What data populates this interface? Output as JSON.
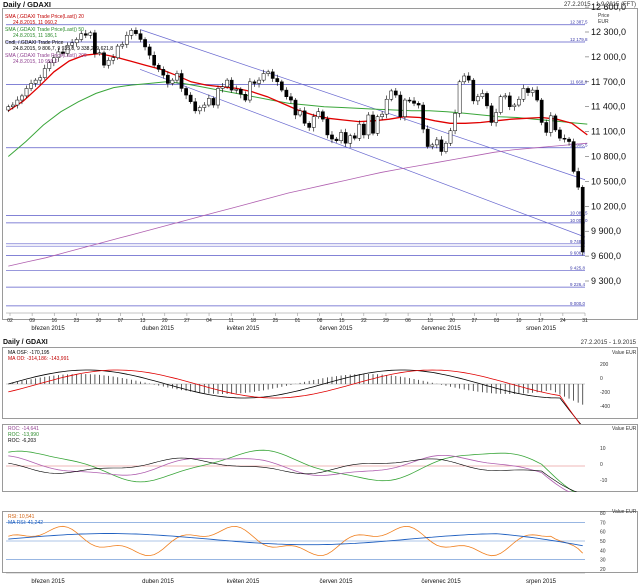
{
  "panel1": {
    "title": "Daily / GDAXI",
    "date_range": "27.2.2015 - 1.9.2015 (FFT)",
    "price_label": "Price",
    "currency": "EUR",
    "legend": [
      {
        "text": "SMA (.GDAXI Trade Price(Last)) 20",
        "value": "24.8.2015, 11 060,2",
        "color": "#e00000"
      },
      {
        "text": "SMA (.GDAXI Trade Price(Last)) 50",
        "value": "24.8.2015, 11 186,1",
        "color": "#3aa63a"
      },
      {
        "text": "Cndl, /.GDAXI Trade Price",
        "value": "24.8.2015, 9 806,7, 9 935,8, 9 338,2, 9 621,8",
        "color": "#000000"
      },
      {
        "text": "SMA (.GDAXI Trade Price(Last)) 200",
        "value": "24.8.2015, 10 959,6",
        "color": "#b060b0"
      }
    ],
    "y_ticks": [
      "12 600,0",
      "12 300,0",
      "12 000,0",
      "11 700,0",
      "11 400,0",
      "11 100,0",
      "10 800,0",
      "10 500,0",
      "10 200,0",
      "9 900,0",
      "9 600,0",
      "9 300,0"
    ],
    "level_labels": [
      "12 387,5",
      "12 179,8",
      "11 668,8",
      "10 905,5",
      "10 089,5",
      "10 000,0",
      "9 748,3",
      "9 606,8",
      "9 425,8",
      "9 226,4",
      "9 000,0"
    ],
    "x_day_labels": [
      "02",
      "09",
      "16",
      "23",
      "30",
      "07",
      "13",
      "20",
      "27",
      "04",
      "11",
      "18",
      "25",
      "01",
      "08",
      "15",
      "22",
      "29",
      "06",
      "13",
      "20",
      "27",
      "03",
      "10",
      "17",
      "24",
      "31"
    ],
    "x_month_labels": [
      "březen 2015",
      "duben 2015",
      "květen 2015",
      "červen 2015",
      "červenec 2015",
      "srpen 2015"
    ]
  },
  "panel2": {
    "title": "Daily / GDAXI",
    "date_range": "27.2.2015 - 1.9.2015",
    "legend": [
      {
        "text": "MA OSF: -170,195",
        "color": "#000000"
      },
      {
        "text": "MA OD: -314,186: -143,991",
        "color": "#e00000"
      }
    ],
    "axis_label": "Value EUR",
    "y_ticks": [
      "200",
      "0",
      "-200",
      "-400"
    ]
  },
  "panel3": {
    "legend": [
      {
        "text": "ROC: -14,641",
        "color": "#b060b0"
      },
      {
        "text": "ROC: -13,990",
        "color": "#3aa63a"
      },
      {
        "text": "ROC: -6,203",
        "color": "#000000"
      }
    ],
    "axis_label": "Value EUR",
    "y_ticks": [
      "10",
      "0",
      "-10"
    ]
  },
  "panel4": {
    "legend": [
      {
        "text": "RSI: 10,541",
        "color": "#f08020"
      },
      {
        "text": "MA RSI: 41,242",
        "color": "#2060c0"
      }
    ],
    "axis_label": "Value EUR",
    "y_ticks": [
      "80",
      "70",
      "60",
      "50",
      "40",
      "30",
      "20"
    ]
  },
  "bottom_x_month_labels": [
    "březen 2015",
    "duben 2015",
    "květen 2015",
    "červen 2015",
    "červenec 2015",
    "srpen 2015"
  ],
  "chart_data": {
    "type": "candlestick",
    "title": "Daily / GDAXI",
    "ylabel": "Price EUR",
    "ylim": [
      9000,
      12800
    ],
    "horizontal_levels": [
      12387.5,
      12179.8,
      11668.8,
      10905.5,
      10089.5,
      10000.0,
      9748.3,
      9606.8,
      9425.8,
      9226.4,
      9000.0
    ],
    "close_series": [
      11400,
      11420,
      11480,
      11530,
      11620,
      11680,
      11720,
      11750,
      11860,
      11930,
      11990,
      12060,
      12040,
      12140,
      12170,
      12210,
      12280,
      12260,
      12290,
      12040,
      12050,
      11900,
      11960,
      11990,
      12130,
      12150,
      12260,
      12320,
      12280,
      12210,
      12120,
      12020,
      11900,
      11850,
      11780,
      11680,
      11720,
      11800,
      11620,
      11540,
      11460,
      11350,
      11390,
      11420,
      11500,
      11420,
      11620,
      11640,
      11720,
      11600,
      11610,
      11550,
      11480,
      11700,
      11680,
      11720,
      11800,
      11820,
      11740,
      11700,
      11600,
      11520,
      11480,
      11300,
      11350,
      11200,
      11150,
      11280,
      11340,
      11250,
      11060,
      11010,
      10990,
      11090,
      10960,
      11050,
      11020,
      11190,
      11060,
      11300,
      11080,
      11280,
      11310,
      11490,
      11590,
      11540,
      11280,
      11480,
      11470,
      11440,
      11420,
      11130,
      10920,
      10940,
      11000,
      10860,
      10960,
      11110,
      11320,
      11700,
      11770,
      11720,
      11470,
      11520,
      11560,
      11410,
      11210,
      11330,
      11520,
      11530,
      11400,
      11420,
      11490,
      11620,
      11570,
      11600,
      11480,
      11210,
      11090,
      11290,
      11120,
      11020,
      11010,
      10980,
      10620,
      10430,
      9650
    ],
    "sma20": [
      11350,
      11470,
      11640,
      11820,
      11950,
      12020,
      12040,
      12000,
      11950,
      11900,
      11850,
      11780,
      11700,
      11660,
      11640,
      11620,
      11580,
      11520,
      11440,
      11360,
      11300,
      11260,
      11240,
      11220,
      11230,
      11250,
      11280,
      11270,
      11230,
      11200,
      11200,
      11210,
      11230,
      11250,
      11260,
      11270,
      11250,
      11200,
      11060
    ],
    "sma50": [
      10800,
      10980,
      11180,
      11340,
      11460,
      11560,
      11630,
      11660,
      11680,
      11700,
      11680,
      11640,
      11600,
      11560,
      11520,
      11480,
      11440,
      11420,
      11400,
      11390,
      11380,
      11370,
      11360,
      11350,
      11350,
      11340,
      11320,
      11300,
      11280,
      11270,
      11250,
      11230,
      11210,
      11190
    ],
    "sma200": [
      9480,
      9530,
      9580,
      9640,
      9700,
      9760,
      9820,
      9880,
      9940,
      10000,
      10060,
      10120,
      10180,
      10240,
      10300,
      10360,
      10410,
      10460,
      10510,
      10560,
      10610,
      10650,
      10690,
      10730,
      10770,
      10810,
      10850,
      10880,
      10900,
      10920,
      10940,
      10960
    ],
    "indicator_macd": {
      "series": [
        {
          "name": "MA OSF: -170,195"
        },
        {
          "name": "MA OD: -314,186: -143,991"
        }
      ]
    },
    "indicator_roc": {
      "series": [
        {
          "name": "ROC: -14,641"
        },
        {
          "name": "ROC: -13,990"
        },
        {
          "name": "ROC: -6,203"
        }
      ]
    },
    "indicator_rsi": {
      "series": [
        {
          "name": "RSI: 10,541"
        },
        {
          "name": "MA RSI: 41,242"
        }
      ],
      "ylim": [
        20,
        80
      ],
      "reference_lines": [
        70,
        50,
        30
      ]
    }
  }
}
